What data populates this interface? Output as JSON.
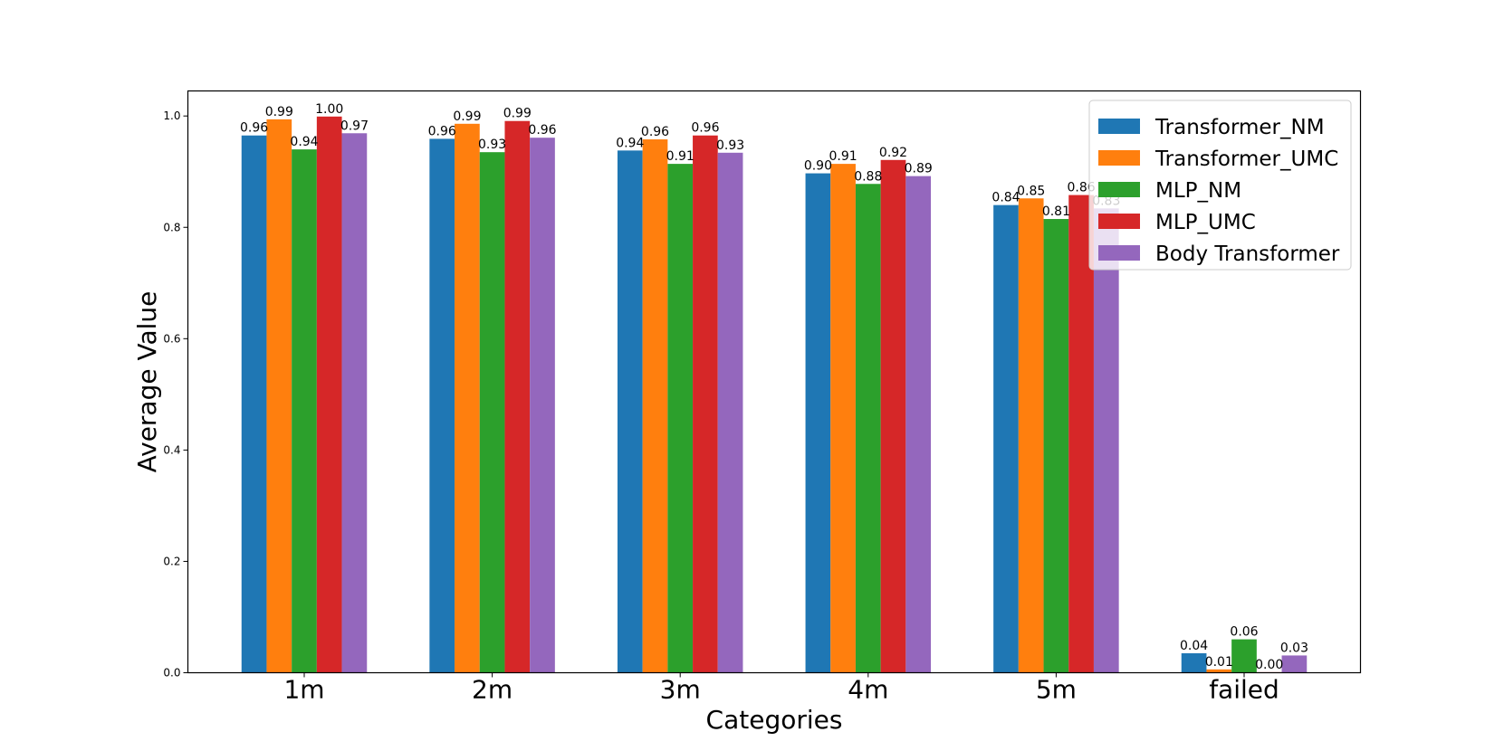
{
  "chart_data": {
    "type": "bar",
    "categories": [
      "1m",
      "2m",
      "3m",
      "4m",
      "5m",
      "failed"
    ],
    "series": [
      {
        "name": "Transformer_NM",
        "color": "#1f77b4",
        "values": [
          0.965,
          0.959,
          0.938,
          0.897,
          0.84,
          0.035
        ],
        "labels": [
          "0.96",
          "0.96",
          "0.94",
          "0.90",
          "0.84",
          "0.04"
        ]
      },
      {
        "name": "Transformer_UMC",
        "color": "#ff7f0e",
        "values": [
          0.994,
          0.986,
          0.958,
          0.914,
          0.852,
          0.006
        ],
        "labels": [
          "0.99",
          "0.99",
          "0.96",
          "0.91",
          "0.85",
          "0.01"
        ]
      },
      {
        "name": "MLP_NM",
        "color": "#2ca02c",
        "values": [
          0.94,
          0.935,
          0.914,
          0.878,
          0.815,
          0.06
        ],
        "labels": [
          "0.94",
          "0.93",
          "0.91",
          "0.88",
          "0.81",
          "0.06"
        ]
      },
      {
        "name": "MLP_UMC",
        "color": "#d62728",
        "values": [
          0.999,
          0.991,
          0.965,
          0.921,
          0.858,
          0.001
        ],
        "labels": [
          "1.00",
          "0.99",
          "0.96",
          "0.92",
          "0.86",
          "0.00"
        ]
      },
      {
        "name": "Body Transformer",
        "color": "#9467bd",
        "values": [
          0.969,
          0.961,
          0.934,
          0.892,
          0.834,
          0.031
        ],
        "labels": [
          "0.97",
          "0.96",
          "0.93",
          "0.89",
          "0.83",
          "0.03"
        ]
      }
    ],
    "xlabel": "Categories",
    "ylabel": "Average Value",
    "ylim": [
      0,
      1.045
    ],
    "yticks": [
      "0.0",
      "0.2",
      "0.4",
      "0.6",
      "0.8",
      "1.0"
    ],
    "grid": false,
    "legend_position": "top-right"
  }
}
